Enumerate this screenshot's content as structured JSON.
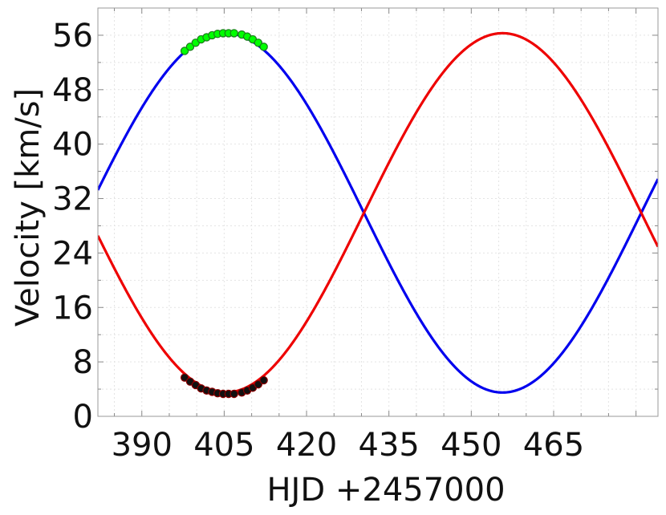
{
  "chart_data": {
    "type": "line",
    "title": "",
    "xlabel": "HJD +2457000",
    "ylabel": "Velocity [km/s]",
    "xlim": [
      382,
      484
    ],
    "ylim": [
      0,
      60
    ],
    "x_ticks": [
      390,
      405,
      420,
      435,
      450,
      465
    ],
    "y_ticks": [
      0,
      8,
      16,
      24,
      32,
      40,
      48,
      56
    ],
    "grid": true,
    "legend": "none",
    "model": {
      "period": 101,
      "gamma": 29.9,
      "amplitude": 26.4,
      "max_blue_at": 405.2
    },
    "series": [
      {
        "type": "line",
        "color": "#0000ee",
        "x": [
          382,
          386,
          390,
          394,
          398,
          402,
          405.2,
          408,
          412,
          416,
          420,
          424,
          428,
          432,
          436,
          440,
          444,
          448,
          452,
          455.7,
          460,
          464,
          468,
          472,
          476,
          480,
          484
        ],
        "y": [
          28.9,
          35.3,
          41.5,
          46.8,
          51.2,
          54.5,
          56.3,
          55.8,
          53.9,
          50.3,
          45.4,
          39.5,
          33.0,
          26.3,
          19.8,
          14.0,
          9.0,
          5.4,
          3.5,
          3.5,
          5.1,
          8.3,
          12.7,
          18.3,
          24.6,
          31.1,
          33.5
        ]
      },
      {
        "type": "line",
        "color": "#ee0000",
        "x": [
          382,
          386,
          390,
          394,
          398,
          402,
          405.2,
          408,
          412,
          416,
          420,
          424,
          428,
          432,
          436,
          440,
          444,
          448,
          452,
          455.7,
          460,
          464,
          468,
          472,
          476,
          480,
          484
        ],
        "y": [
          30.9,
          24.5,
          18.3,
          13.0,
          8.6,
          5.3,
          3.5,
          4.0,
          5.9,
          9.5,
          14.4,
          20.3,
          26.8,
          33.5,
          40.0,
          45.8,
          50.8,
          54.4,
          56.3,
          56.3,
          54.7,
          51.5,
          47.1,
          41.5,
          35.2,
          28.7,
          26.3
        ]
      },
      {
        "type": "scatter",
        "color": "#00ff00",
        "edge": "#1a7a1a",
        "x": [
          397.8,
          398.8,
          399.8,
          400.8,
          401.8,
          402.8,
          403.8,
          404.8,
          405.8,
          406.8,
          408.2,
          409.2,
          410.2,
          411.2,
          412.2
        ],
        "y": [
          53.7,
          54.3,
          54.9,
          55.4,
          55.7,
          56.0,
          56.2,
          56.3,
          56.3,
          56.3,
          56.1,
          55.8,
          55.4,
          54.9,
          54.3
        ]
      },
      {
        "type": "scatter",
        "color": "#111111",
        "edge": "#8b0000",
        "x": [
          397.8,
          398.8,
          399.8,
          400.8,
          401.8,
          402.8,
          403.8,
          404.8,
          405.8,
          406.8,
          408.2,
          409.2,
          410.2,
          411.2,
          412.2
        ],
        "y": [
          5.7,
          5.1,
          4.6,
          4.1,
          3.8,
          3.6,
          3.4,
          3.3,
          3.3,
          3.3,
          3.5,
          3.8,
          4.2,
          4.7,
          5.3
        ]
      }
    ]
  }
}
